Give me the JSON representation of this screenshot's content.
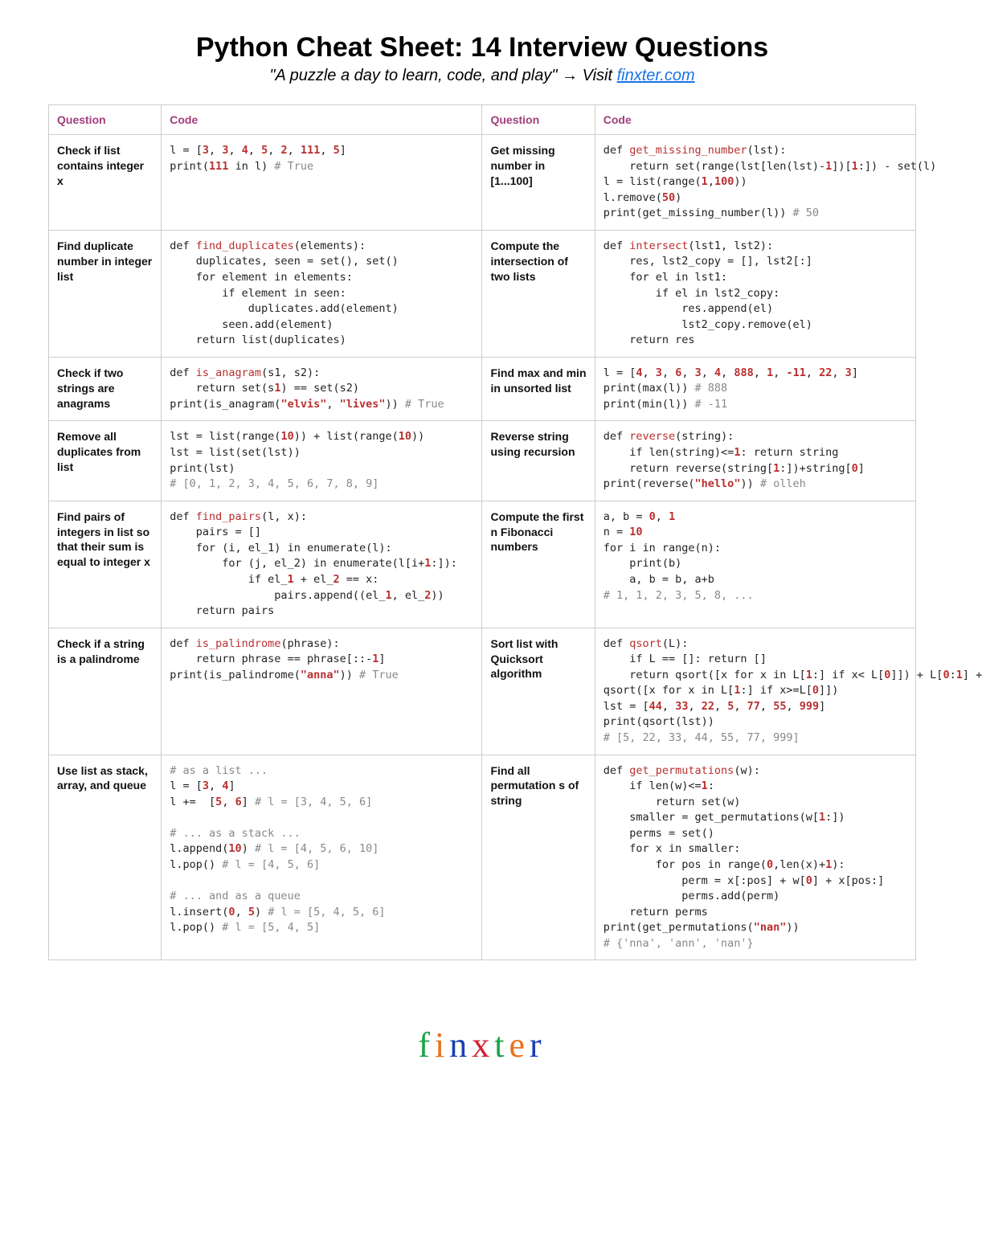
{
  "title": "Python Cheat Sheet: 14 Interview Questions",
  "subtitle_quote": "\"A puzzle a day to learn, code, and play\"",
  "subtitle_visit": "Visit",
  "subtitle_link": "finxter.com",
  "headers": {
    "question": "Question",
    "code": "Code"
  },
  "rows": [
    {
      "q1": "Check if list contains integer x",
      "c1": "l = [<n>3</n>, <n>3</n>, <n>4</n>, <n>5</n>, <n>2</n>, <n>111</n>, <n>5</n>]\nprint(<n>111</n> in l) <c># True</c>",
      "q2": "Get missing number in [1...100]",
      "c2": "def <f>get_missing_number</f>(lst):\n    return set(range(lst[len(lst)-<n>1</n>])[<n>1</n>:]) - set(l)\nl = list(range(<n>1</n>,<n>100</n>))\nl.remove(<n>50</n>)\nprint(get_missing_number(l)) <c># 50</c>"
    },
    {
      "q1": "Find duplicate number in integer list",
      "c1": "def <f>find_duplicates</f>(elements):\n    duplicates, seen = set(), set()\n    for element in elements:\n        if element in seen:\n            duplicates.add(element)\n        seen.add(element)\n    return list(duplicates)",
      "q2": "Compute the intersection of two lists",
      "c2": "def <f>intersect</f>(lst1, lst2):\n    res, lst2_copy = [], lst2[:]\n    for el in lst1:\n        if el in lst2_copy:\n            res.append(el)\n            lst2_copy.remove(el)\n    return res"
    },
    {
      "q1": "Check if two strings are anagrams",
      "c1": "def <f>is_anagram</f>(s1, s2):\n    return set(s<n>1</n>) == set(s2)\nprint(is_anagram(<s>\"elvis\"</s>, <s>\"lives\"</s>)) <c># True</c>",
      "q2": "Find max and min in unsorted list",
      "c2": "l = [<n>4</n>, <n>3</n>, <n>6</n>, <n>3</n>, <n>4</n>, <n>888</n>, <n>1</n>, <n>-11</n>, <n>22</n>, <n>3</n>]\nprint(max(l)) <c># 888</c>\nprint(min(l)) <c># -11</c>"
    },
    {
      "q1": "Remove all duplicates from list",
      "c1": "lst = list(range(<n>10</n>)) + list(range(<n>10</n>))\nlst = list(set(lst))\nprint(lst)\n<c># [0, 1, 2, 3, 4, 5, 6, 7, 8, 9]</c>",
      "q2": "Reverse string using recursion",
      "c2": "def <f>reverse</f>(string):\n    if len(string)<=<n>1</n>: return string\n    return reverse(string[<n>1</n>:])+string[<n>0</n>]\nprint(reverse(<s>\"hello\"</s>)) <c># olleh</c>"
    },
    {
      "q1": "Find pairs of integers in list so that their sum is equal to integer x",
      "c1": "def <f>find_pairs</f>(l, x):\n    pairs = []\n    for (i, el_1) in enumerate(l):\n        for (j, el_2) in enumerate(l[i+<n>1</n>:]):\n            if el_<n>1</n> + el_<n>2</n> == x:\n                pairs.append((el_<n>1</n>, el_<n>2</n>))\n    return pairs",
      "q2": "Compute the first n Fibonacci numbers",
      "c2": "a, b = <n>0</n>, <n>1</n>\nn = <n>10</n>\nfor i in range(n):\n    print(b)\n    a, b = b, a+b\n<c># 1, 1, 2, 3, 5, 8, ...</c>"
    },
    {
      "q1": "Check if a string is a palindrome",
      "c1": "def <f>is_palindrome</f>(phrase):\n    return phrase == phrase[::-<n>1</n>]\nprint(is_palindrome(<s>\"anna\"</s>)) <c># True</c>",
      "q2": "Sort list with Quicksort algorithm",
      "c2": "def <f>qsort</f>(L):\n    if L == []: return []\n    return qsort([x for x in L[<n>1</n>:] if x< L[<n>0</n>]]) + L[<n>0</n>:<n>1</n>] +\nqsort([x for x in L[<n>1</n>:] if x>=L[<n>0</n>]])\nlst = [<n>44</n>, <n>33</n>, <n>22</n>, <n>5</n>, <n>77</n>, <n>55</n>, <n>999</n>]\nprint(qsort(lst))\n<c># [5, 22, 33, 44, 55, 77, 999]</c>"
    },
    {
      "q1": "Use list as stack, array, and queue",
      "c1": "<c># as a list ...</c>\nl = [<n>3</n>, <n>4</n>]\nl +=  [<n>5</n>, <n>6</n>] <c># l = [3, 4, 5, 6]</c>\n\n<c># ... as a stack ...</c>\nl.append(<n>10</n>) <c># l = [4, 5, 6, 10]</c>\nl.pop() <c># l = [4, 5, 6]</c>\n\n<c># ... and as a queue</c>\nl.insert(<n>0</n>, <n>5</n>) <c># l = [5, 4, 5, 6]</c>\nl.pop() <c># l = [5, 4, 5]</c>",
      "q2": "Find all permutation s of string",
      "c2": "def <f>get_permutations</f>(w):\n    if len(w)<=<n>1</n>:\n        return set(w)\n    smaller = get_permutations(w[<n>1</n>:])\n    perms = set()\n    for x in smaller:\n        for pos in range(<n>0</n>,len(x)+<n>1</n>):\n            perm = x[:pos] + w[<n>0</n>] + x[pos:]\n            perms.add(perm)\n    return perms\nprint(get_permutations(<s>\"nan\"</s>))\n<c># {'nna', 'ann', 'nan'}</c>"
    }
  ],
  "logo": {
    "letters": [
      "f",
      "i",
      "n",
      "x",
      "t",
      "e",
      "r"
    ],
    "colors": [
      "#1aa34a",
      "#e8711c",
      "#1a3fb5",
      "#d11f2f",
      "#1aa34a",
      "#e8711c",
      "#1a3fb5"
    ]
  }
}
